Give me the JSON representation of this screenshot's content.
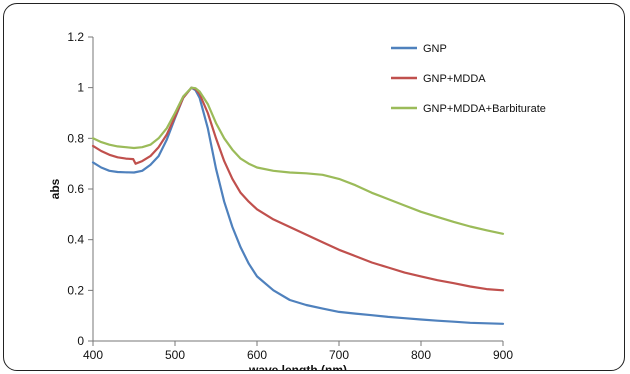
{
  "chart_data": {
    "type": "line",
    "xlabel": "wave length (nm)",
    "ylabel": "abs",
    "xlim": [
      400,
      900
    ],
    "ylim": [
      0,
      1.2
    ],
    "x_ticks": [
      400,
      500,
      600,
      700,
      800,
      900
    ],
    "y_ticks": [
      0,
      0.2,
      0.4,
      0.6,
      0.8,
      1,
      1.2
    ],
    "x_tick_labels": [
      "400",
      "500",
      "600",
      "700",
      "800",
      "900"
    ],
    "y_tick_labels": [
      "0",
      "0.2",
      "0.4",
      "0.6",
      "0.8",
      "1",
      "1.2"
    ],
    "grid": false,
    "legend_position": "top-right",
    "series": [
      {
        "name": "GNP",
        "color": "#4f81bd",
        "points": [
          [
            400,
            0.705
          ],
          [
            410,
            0.685
          ],
          [
            420,
            0.672
          ],
          [
            430,
            0.667
          ],
          [
            440,
            0.666
          ],
          [
            450,
            0.665
          ],
          [
            460,
            0.672
          ],
          [
            470,
            0.695
          ],
          [
            480,
            0.73
          ],
          [
            490,
            0.795
          ],
          [
            500,
            0.88
          ],
          [
            510,
            0.96
          ],
          [
            520,
            1.0
          ],
          [
            525,
            0.99
          ],
          [
            530,
            0.96
          ],
          [
            540,
            0.84
          ],
          [
            550,
            0.68
          ],
          [
            560,
            0.55
          ],
          [
            570,
            0.45
          ],
          [
            580,
            0.37
          ],
          [
            590,
            0.305
          ],
          [
            600,
            0.255
          ],
          [
            620,
            0.2
          ],
          [
            640,
            0.162
          ],
          [
            660,
            0.142
          ],
          [
            680,
            0.128
          ],
          [
            700,
            0.115
          ],
          [
            720,
            0.108
          ],
          [
            740,
            0.102
          ],
          [
            760,
            0.095
          ],
          [
            780,
            0.09
          ],
          [
            800,
            0.085
          ],
          [
            820,
            0.08
          ],
          [
            840,
            0.076
          ],
          [
            860,
            0.072
          ],
          [
            880,
            0.07
          ],
          [
            900,
            0.068
          ]
        ]
      },
      {
        "name": "GNP+MDDA",
        "color": "#c0504d",
        "points": [
          [
            400,
            0.77
          ],
          [
            410,
            0.75
          ],
          [
            420,
            0.735
          ],
          [
            430,
            0.725
          ],
          [
            440,
            0.72
          ],
          [
            449,
            0.718
          ],
          [
            452,
            0.7
          ],
          [
            460,
            0.71
          ],
          [
            470,
            0.73
          ],
          [
            480,
            0.765
          ],
          [
            490,
            0.815
          ],
          [
            500,
            0.885
          ],
          [
            510,
            0.96
          ],
          [
            520,
            1.0
          ],
          [
            525,
            0.995
          ],
          [
            530,
            0.975
          ],
          [
            540,
            0.9
          ],
          [
            550,
            0.8
          ],
          [
            560,
            0.71
          ],
          [
            570,
            0.64
          ],
          [
            580,
            0.585
          ],
          [
            590,
            0.55
          ],
          [
            600,
            0.52
          ],
          [
            620,
            0.48
          ],
          [
            640,
            0.45
          ],
          [
            660,
            0.42
          ],
          [
            680,
            0.39
          ],
          [
            700,
            0.36
          ],
          [
            720,
            0.335
          ],
          [
            740,
            0.31
          ],
          [
            760,
            0.29
          ],
          [
            780,
            0.27
          ],
          [
            800,
            0.255
          ],
          [
            820,
            0.24
          ],
          [
            840,
            0.228
          ],
          [
            860,
            0.215
          ],
          [
            880,
            0.205
          ],
          [
            900,
            0.2
          ]
        ]
      },
      {
        "name": "GNP+MDDA+Barbiturate",
        "color": "#9bbb59",
        "points": [
          [
            400,
            0.8
          ],
          [
            410,
            0.785
          ],
          [
            420,
            0.775
          ],
          [
            430,
            0.768
          ],
          [
            440,
            0.765
          ],
          [
            450,
            0.762
          ],
          [
            460,
            0.765
          ],
          [
            470,
            0.775
          ],
          [
            480,
            0.8
          ],
          [
            490,
            0.84
          ],
          [
            500,
            0.9
          ],
          [
            510,
            0.965
          ],
          [
            520,
            1.0
          ],
          [
            525,
            0.998
          ],
          [
            530,
            0.985
          ],
          [
            540,
            0.935
          ],
          [
            550,
            0.86
          ],
          [
            560,
            0.8
          ],
          [
            570,
            0.755
          ],
          [
            580,
            0.72
          ],
          [
            590,
            0.7
          ],
          [
            600,
            0.685
          ],
          [
            620,
            0.672
          ],
          [
            640,
            0.665
          ],
          [
            660,
            0.662
          ],
          [
            680,
            0.656
          ],
          [
            700,
            0.64
          ],
          [
            720,
            0.615
          ],
          [
            740,
            0.585
          ],
          [
            760,
            0.56
          ],
          [
            780,
            0.535
          ],
          [
            800,
            0.51
          ],
          [
            820,
            0.49
          ],
          [
            840,
            0.47
          ],
          [
            860,
            0.452
          ],
          [
            880,
            0.437
          ],
          [
            900,
            0.423
          ]
        ]
      }
    ]
  }
}
